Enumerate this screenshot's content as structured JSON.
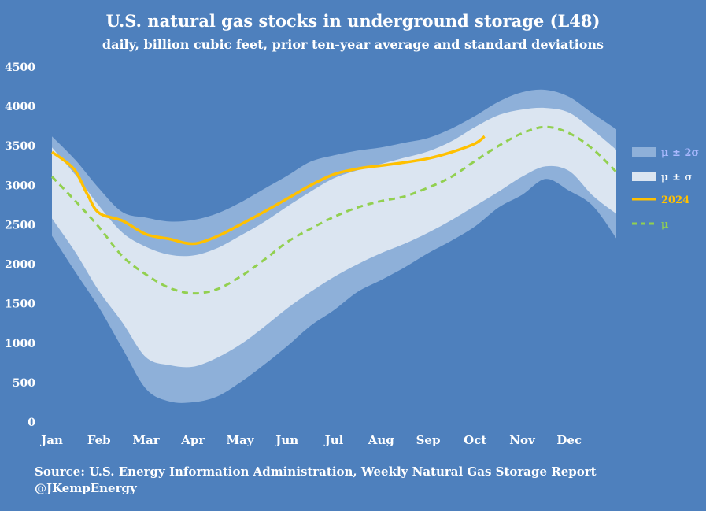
{
  "title": "U.S. natural gas stocks in underground storage (L48)",
  "subtitle": "daily, billion cubic feet, prior ten-year average and standard deviations",
  "source": "Source: U.S. Energy Information Administration, Weekly Natural Gas Storage Report",
  "handle": "@JKempEnergy",
  "colors": {
    "background": "#4e80bd",
    "band_2sd": "#8eb0d9",
    "band_1sd": "#dbe5f1",
    "line_2024": "#ffc000",
    "line_mean": "#92d050",
    "text": "#ffffff",
    "legend_2sd_text": "#aab9ff",
    "legend_2024_text": "#ffc000",
    "legend_mean_text": "#92d050"
  },
  "chart_data": {
    "type": "line",
    "x_unit": "month of year (1 = start of Jan)",
    "xticks": [
      "Jan",
      "Feb",
      "Mar",
      "Apr",
      "May",
      "Jun",
      "Jul",
      "Aug",
      "Sep",
      "Oct",
      "Nov",
      "Dec"
    ],
    "yticks": [
      "0",
      "500",
      "1000",
      "1500",
      "2000",
      "2500",
      "3000",
      "3500",
      "4000",
      "4500"
    ],
    "ylim": [
      0,
      4500
    ],
    "xlim": [
      1,
      13
    ],
    "legend": [
      {
        "label": "μ ± 2σ",
        "kind": "band"
      },
      {
        "label": "μ ± σ",
        "kind": "band"
      },
      {
        "label": "2024",
        "kind": "line"
      },
      {
        "label": "μ",
        "kind": "dashed"
      }
    ],
    "legend_position": "right",
    "grid": false,
    "x": [
      1,
      1.5,
      2,
      2.5,
      3,
      3.5,
      4,
      4.5,
      5,
      5.5,
      6,
      6.5,
      7,
      7.5,
      8,
      8.5,
      9,
      9.5,
      10,
      10.5,
      11,
      11.5,
      12,
      12.5,
      13
    ],
    "series": [
      {
        "name": "μ + 2σ",
        "values": [
          3620,
          3320,
          2960,
          2660,
          2590,
          2540,
          2560,
          2640,
          2780,
          2950,
          3120,
          3300,
          3380,
          3440,
          3480,
          3540,
          3600,
          3720,
          3880,
          4060,
          4180,
          4210,
          4120,
          3910,
          3710
        ]
      },
      {
        "name": "μ + σ",
        "values": [
          3480,
          3130,
          2740,
          2400,
          2220,
          2120,
          2110,
          2200,
          2360,
          2530,
          2730,
          2920,
          3090,
          3190,
          3270,
          3350,
          3430,
          3560,
          3740,
          3890,
          3960,
          3980,
          3920,
          3700,
          3450
        ]
      },
      {
        "name": "μ",
        "values": [
          3110,
          2800,
          2470,
          2100,
          1870,
          1700,
          1630,
          1680,
          1840,
          2050,
          2280,
          2450,
          2600,
          2720,
          2800,
          2860,
          2970,
          3110,
          3310,
          3500,
          3660,
          3740,
          3660,
          3460,
          3170
        ]
      },
      {
        "name": "μ − σ",
        "values": [
          2580,
          2150,
          1660,
          1260,
          820,
          720,
          700,
          810,
          980,
          1200,
          1440,
          1650,
          1840,
          2000,
          2140,
          2260,
          2400,
          2560,
          2740,
          2920,
          3110,
          3240,
          3180,
          2870,
          2640
        ]
      },
      {
        "name": "μ − 2σ",
        "values": [
          2360,
          1900,
          1450,
          930,
          420,
          260,
          250,
          320,
          500,
          720,
          960,
          1220,
          1420,
          1650,
          1800,
          1960,
          2140,
          2300,
          2480,
          2720,
          2880,
          3080,
          2930,
          2740,
          2330
        ]
      },
      {
        "name": "2024",
        "x": [
          1,
          1.25,
          1.5,
          1.75,
          2,
          2.5,
          3,
          3.5,
          4,
          4.5,
          5,
          5.5,
          6,
          6.5,
          7,
          7.5,
          8,
          8.5,
          9,
          9.5,
          10,
          10.2
        ],
        "values": [
          3420,
          3320,
          3180,
          2890,
          2650,
          2550,
          2380,
          2320,
          2260,
          2350,
          2500,
          2660,
          2830,
          3000,
          3140,
          3210,
          3250,
          3290,
          3340,
          3420,
          3530,
          3620
        ]
      }
    ]
  }
}
